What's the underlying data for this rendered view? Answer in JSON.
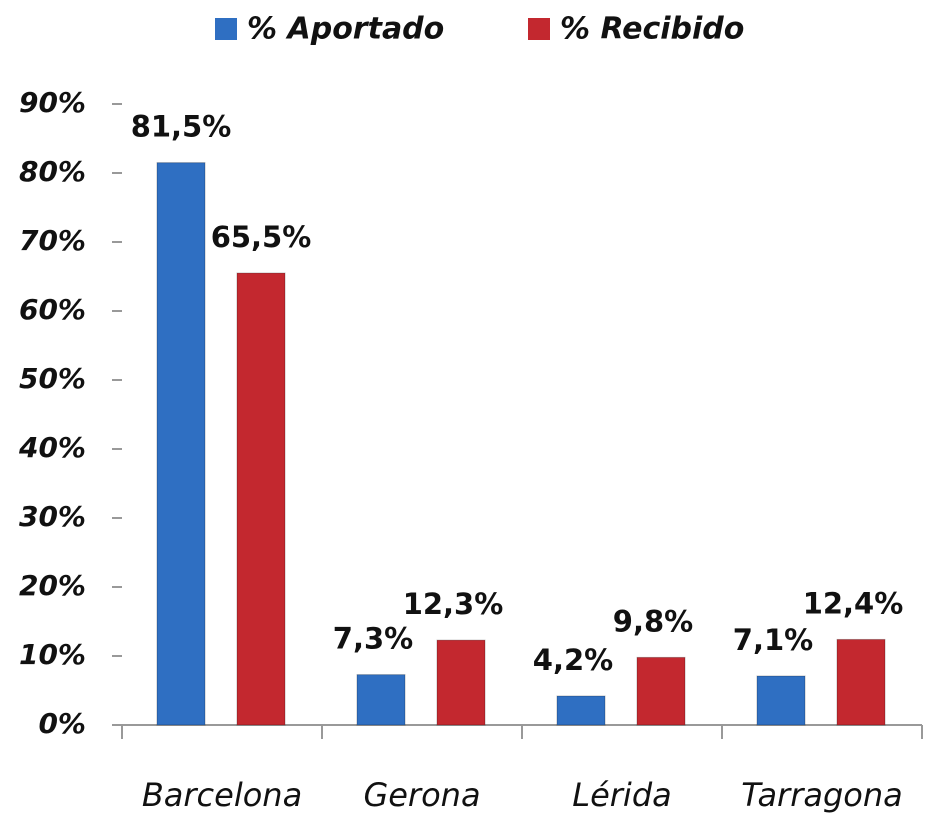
{
  "chart_data": {
    "type": "bar",
    "categories": [
      "Barcelona",
      "Gerona",
      "Lérida",
      "Tarragona"
    ],
    "series": [
      {
        "name": "% Aportado",
        "color": "#2f6fc2",
        "values": [
          81.5,
          7.3,
          4.2,
          7.1
        ],
        "value_labels": [
          "81,5%",
          "7,3%",
          "4,2%",
          "7,1%"
        ]
      },
      {
        "name": "% Recibido",
        "color": "#c3282f",
        "values": [
          65.5,
          12.3,
          9.8,
          12.4
        ],
        "value_labels": [
          "65,5%",
          "12,3%",
          "9,8%",
          "12,4%"
        ]
      }
    ],
    "ylim": [
      0,
      90
    ],
    "yticks": [
      {
        "value": 0,
        "label": "0%"
      },
      {
        "value": 10,
        "label": "10%"
      },
      {
        "value": 20,
        "label": "20%"
      },
      {
        "value": 30,
        "label": "30%"
      },
      {
        "value": 40,
        "label": "40%"
      },
      {
        "value": 50,
        "label": "50%"
      },
      {
        "value": 60,
        "label": "60%"
      },
      {
        "value": 70,
        "label": "70%"
      },
      {
        "value": 80,
        "label": "80%"
      },
      {
        "value": 90,
        "label": "90%"
      }
    ],
    "legend": "top",
    "grid": false
  }
}
